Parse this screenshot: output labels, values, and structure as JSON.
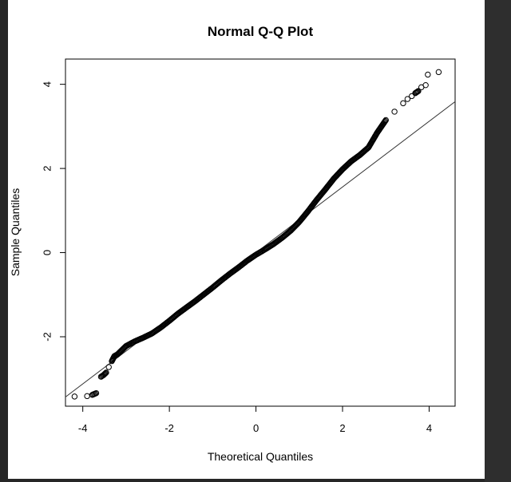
{
  "chart_data": {
    "type": "scatter",
    "title": "Normal Q-Q Plot",
    "xlabel": "Theoretical Quantiles",
    "ylabel": "Sample Quantiles",
    "xlim": [
      -4.4,
      4.6
    ],
    "ylim": [
      -3.65,
      4.6
    ],
    "xticks": [
      -4,
      -2,
      0,
      2,
      4
    ],
    "yticks": [
      -2,
      0,
      2,
      4
    ],
    "grid": false,
    "reference_line": {
      "intercept": 0.0,
      "slope": 0.78
    },
    "series": [
      {
        "marker": "open-circle",
        "color": "#000000",
        "points": [
          [
            -4.19,
            -3.42
          ],
          [
            -3.9,
            -3.41
          ],
          [
            -3.78,
            -3.38
          ],
          [
            -3.69,
            -3.34
          ],
          [
            -3.58,
            -2.95
          ],
          [
            -3.52,
            -2.91
          ],
          [
            -3.46,
            -2.85
          ],
          [
            -3.4,
            -2.72
          ],
          [
            -3.33,
            -2.58
          ],
          [
            -3.27,
            -2.46
          ],
          [
            -3.2,
            -2.42
          ],
          [
            -3.1,
            -2.32
          ],
          [
            -3.0,
            -2.22
          ],
          [
            -2.8,
            -2.11
          ],
          [
            -2.6,
            -2.02
          ],
          [
            -2.4,
            -1.92
          ],
          [
            -2.2,
            -1.78
          ],
          [
            -2.0,
            -1.62
          ],
          [
            -1.8,
            -1.45
          ],
          [
            -1.6,
            -1.3
          ],
          [
            -1.4,
            -1.15
          ],
          [
            -1.2,
            -0.99
          ],
          [
            -1.0,
            -0.83
          ],
          [
            -0.8,
            -0.66
          ],
          [
            -0.6,
            -0.5
          ],
          [
            -0.4,
            -0.35
          ],
          [
            -0.2,
            -0.19
          ],
          [
            0.0,
            -0.05
          ],
          [
            0.2,
            0.07
          ],
          [
            0.4,
            0.2
          ],
          [
            0.6,
            0.35
          ],
          [
            0.8,
            0.52
          ],
          [
            1.0,
            0.73
          ],
          [
            1.2,
            0.98
          ],
          [
            1.4,
            1.25
          ],
          [
            1.6,
            1.5
          ],
          [
            1.8,
            1.76
          ],
          [
            2.0,
            1.98
          ],
          [
            2.2,
            2.17
          ],
          [
            2.4,
            2.32
          ],
          [
            2.6,
            2.5
          ],
          [
            2.8,
            2.85
          ],
          [
            3.0,
            3.15
          ],
          [
            3.2,
            3.35
          ],
          [
            3.4,
            3.55
          ],
          [
            3.5,
            3.65
          ],
          [
            3.6,
            3.72
          ],
          [
            3.68,
            3.79
          ],
          [
            3.75,
            3.84
          ],
          [
            3.82,
            3.93
          ],
          [
            3.92,
            3.98
          ],
          [
            3.97,
            4.23
          ],
          [
            4.22,
            4.29
          ]
        ]
      }
    ]
  }
}
